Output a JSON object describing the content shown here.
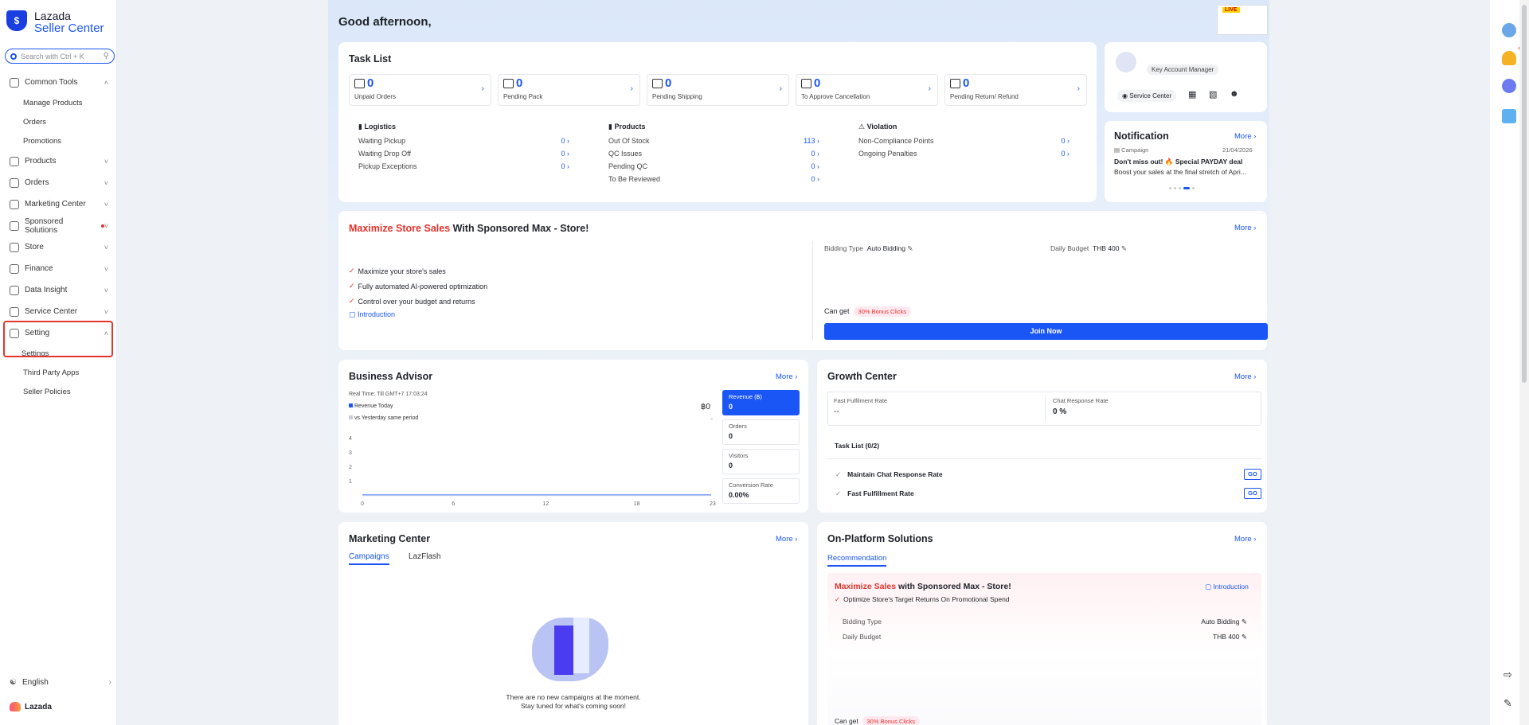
{
  "sidebar": {
    "brand_line1": "Lazada",
    "brand_line2": "Seller Center",
    "search_placeholder": "Search with Ctrl + K",
    "items": [
      {
        "label": "Common Tools",
        "icon": "tools-icon",
        "expanded": true,
        "children": [
          "Manage Products",
          "Orders",
          "Promotions"
        ]
      },
      {
        "label": "Products",
        "icon": "box-icon"
      },
      {
        "label": "Orders",
        "icon": "orders-icon"
      },
      {
        "label": "Marketing Center",
        "icon": "marketing-icon"
      },
      {
        "label": "Sponsored Solutions",
        "icon": "sponsored-icon",
        "badge": true
      },
      {
        "label": "Store",
        "icon": "store-icon"
      },
      {
        "label": "Finance",
        "icon": "finance-icon"
      },
      {
        "label": "Data Insight",
        "icon": "data-icon"
      },
      {
        "label": "Service Center",
        "icon": "service-icon"
      },
      {
        "label": "Setting",
        "icon": "setting-icon",
        "expanded": true,
        "children": [
          "Settings",
          "Third Party Apps",
          "Seller Policies"
        ]
      }
    ],
    "language": "English",
    "footer_brand": "Lazada"
  },
  "header": {
    "greeting": "Good afternoon,",
    "live_badge": "LIVE"
  },
  "task_list": {
    "title": "Task List",
    "boxes": [
      {
        "count": "0",
        "label": "Unpaid Orders"
      },
      {
        "count": "0",
        "label": "Pending Pack"
      },
      {
        "count": "0",
        "label": "Pending Shipping"
      },
      {
        "count": "0",
        "label": "To Approve Cancellation"
      },
      {
        "count": "0",
        "label": "Pending Return/ Refund"
      }
    ],
    "logistics": {
      "title": "Logistics",
      "rows": [
        {
          "label": "Waiting Pickup",
          "value": "0"
        },
        {
          "label": "Waiting Drop Off",
          "value": "0"
        },
        {
          "label": "Pickup Exceptions",
          "value": "0"
        }
      ]
    },
    "products": {
      "title": "Products",
      "rows": [
        {
          "label": "Out Of Stock",
          "value": "113"
        },
        {
          "label": "QC Issues",
          "value": "0"
        },
        {
          "label": "Pending QC",
          "value": "0"
        },
        {
          "label": "To Be Reviewed",
          "value": "0"
        }
      ]
    },
    "violation": {
      "title": "Violation",
      "rows": [
        {
          "label": "Non-Compliance Points",
          "value": "0"
        },
        {
          "label": "Ongoing Penalties",
          "value": "0"
        }
      ]
    }
  },
  "account": {
    "manager": "Key Account Manager",
    "service_center": "Service Center"
  },
  "notification": {
    "title": "Notification",
    "more": "More",
    "category": "Campaign",
    "date": "21/04/2026",
    "headline": "Don't miss out! 🔥 Special PAYDAY deal",
    "body": "Boost your sales at the final stretch of Apri..."
  },
  "sponsored_max": {
    "title_highlight": "Maximize Store Sales",
    "title_rest": " With Sponsored Max - Store!",
    "more": "More",
    "benefits": [
      "Maximize your store's sales",
      "Fully automated AI-powered optimization",
      "Control over your budget and returns"
    ],
    "intro": "Introduction",
    "bidding_label": "Bidding Type",
    "bidding_value": "Auto Bidding",
    "budget_label": "Daily Budget",
    "budget_value": "THB 400",
    "can_get": "Can get",
    "bonus": "30% Bonus Clicks",
    "join": "Join Now"
  },
  "business_advisor": {
    "title": "Business Advisor",
    "more": "More",
    "realtime": "Real Time: Till GMT+7 17:03:24",
    "legend_today": "Revenue Today",
    "legend_yesterday": "vs.Yesterday same period",
    "current_value": "฿0",
    "dash": "-",
    "metrics": [
      {
        "label": "Revenue (฿)",
        "value": "0",
        "active": true
      },
      {
        "label": "Orders",
        "value": "0"
      },
      {
        "label": "Visitors",
        "value": "0"
      },
      {
        "label": "Conversion Rate",
        "value": "0.00%"
      }
    ]
  },
  "chart_data": {
    "type": "line",
    "x": [
      0,
      6,
      12,
      18,
      23
    ],
    "y_ticks": [
      "1",
      "2",
      "3",
      "4"
    ],
    "x_ticks": [
      "0",
      "6",
      "12",
      "18",
      "23"
    ],
    "series": [
      {
        "name": "Revenue Today",
        "values": [
          0,
          0,
          0,
          0,
          0
        ]
      }
    ],
    "ylim": [
      0,
      4
    ]
  },
  "growth_center": {
    "title": "Growth Center",
    "more": "More",
    "fast_fulfilment_label": "Fast Fulfilment Rate",
    "fast_fulfilment_value": "--",
    "chat_label": "Chat Response Rate",
    "chat_value": "0 %",
    "task_list": "Task List (0/2)",
    "tasks": [
      "Maintain Chat Response Rate",
      "Fast Fulfillment Rate"
    ],
    "go": "GO"
  },
  "marketing_center": {
    "title": "Marketing Center",
    "more": "More",
    "tabs": [
      "Campaigns",
      "LazFlash"
    ],
    "empty_line1": "There are no new campaigns at the moment.",
    "empty_line2": "Stay tuned for what's coming soon!"
  },
  "platform_solutions": {
    "title": "On-Platform Solutions",
    "more": "More",
    "tab": "Recommendation",
    "card_title_highlight": "Maximize Sales",
    "card_title_rest": " with Sponsored Max - Store!",
    "intro": "Introduction",
    "benefit": "Optimize Store's Target Returns On Promotional Spend",
    "bidding_label": "Bidding Type",
    "bidding_value": "Auto Bidding",
    "budget_label": "Daily Budget",
    "budget_value": "THB 400",
    "can_get": "Can get",
    "bonus": "30% Bonus Clicks"
  },
  "colors": {
    "accent": "#1a56f5",
    "highlight": "#e5342b"
  }
}
